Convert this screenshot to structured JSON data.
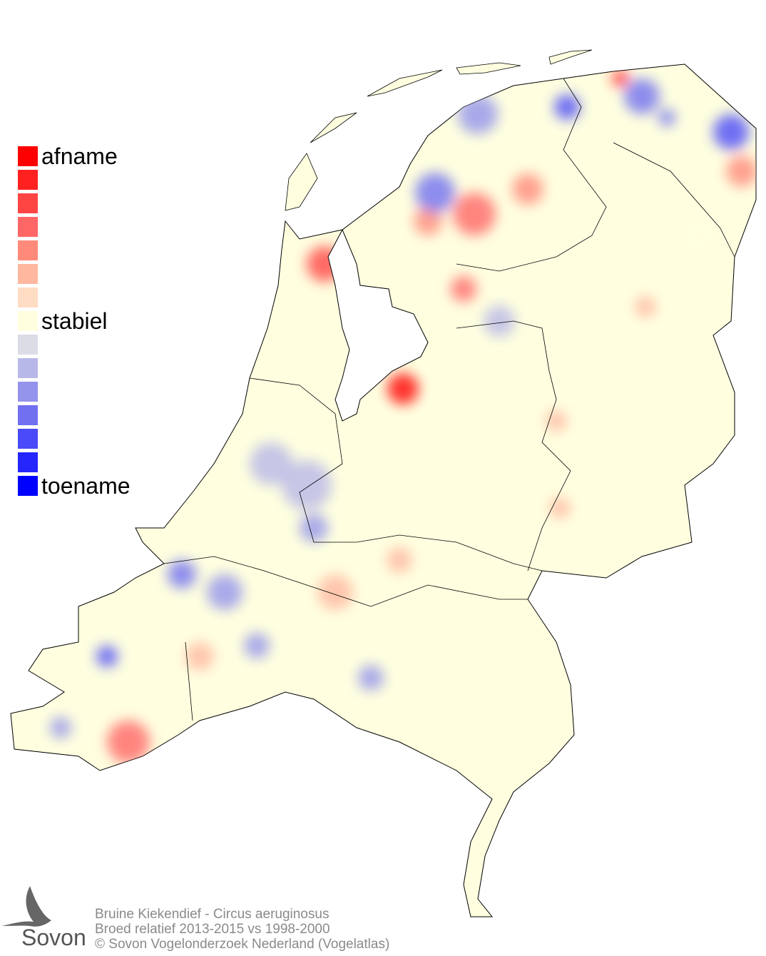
{
  "legend": {
    "top_label": "afname",
    "middle_label": "stabiel",
    "bottom_label": "toename",
    "colors": [
      "#ff0000",
      "#ff2020",
      "#ff4444",
      "#ff6666",
      "#ff8a7a",
      "#ffb8a0",
      "#ffdcc4",
      "#ffffe0",
      "#dcdce6",
      "#b8b8e8",
      "#9494ec",
      "#7070f0",
      "#4a4af8",
      "#2525fc",
      "#0000ff"
    ]
  },
  "footer": {
    "line1": "Bruine Kiekendief - Circus aeruginosus",
    "line2": "Broed relatief 2013-2015 vs 1998-2000",
    "line3": "© Sovon Vogelonderzoek Nederland (Vogelatlas)"
  },
  "logo": {
    "text": "Sovon"
  },
  "map_colors": {
    "land_stable": "#ffffe0",
    "decline": "#ff8a7a",
    "increase": "#9494ec",
    "border": "#000000"
  }
}
